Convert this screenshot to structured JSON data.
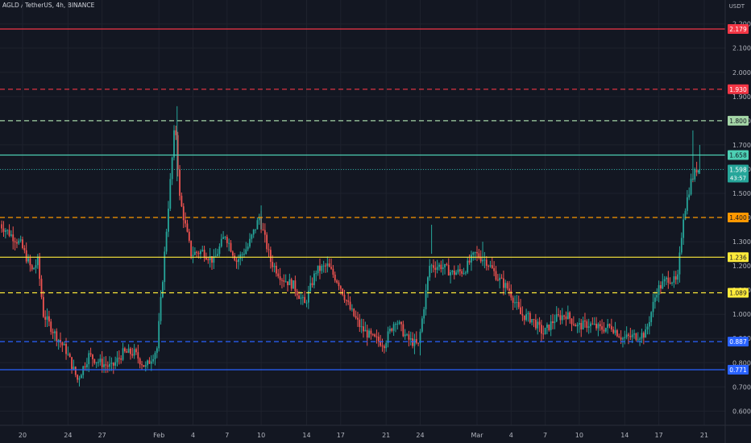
{
  "header": {
    "symbol": "AGLD / TetherUS, 4h, BINANCE",
    "currency": "USDT"
  },
  "colors": {
    "bg": "#131722",
    "up": "#26a69a",
    "down": "#ef5350",
    "grid": "#1e222d",
    "axis_text": "#b2b5be"
  },
  "chart_data": {
    "type": "candlestick",
    "title": "AGLD / TetherUS, 4h, BINANCE",
    "ylabel": "USDT",
    "ylim": [
      0.55,
      2.23
    ],
    "y_ticks": [
      "2.200",
      "2.100",
      "2.000",
      "1.900",
      "1.800",
      "1.700",
      "1.600",
      "1.500",
      "1.400",
      "1.300",
      "1.200",
      "1.100",
      "1.000",
      "0.900",
      "0.800",
      "0.700",
      "0.600"
    ],
    "x_ticks": [
      {
        "label": "20",
        "day": 0
      },
      {
        "label": "24",
        "day": 4
      },
      {
        "label": "27",
        "day": 7
      },
      {
        "label": "Feb",
        "day": 12
      },
      {
        "label": "4",
        "day": 15
      },
      {
        "label": "7",
        "day": 18
      },
      {
        "label": "10",
        "day": 21
      },
      {
        "label": "14",
        "day": 25
      },
      {
        "label": "17",
        "day": 28
      },
      {
        "label": "21",
        "day": 32
      },
      {
        "label": "24",
        "day": 35
      },
      {
        "label": "Mar",
        "day": 40
      },
      {
        "label": "4",
        "day": 43
      },
      {
        "label": "7",
        "day": 46
      },
      {
        "label": "10",
        "day": 49
      },
      {
        "label": "14",
        "day": 53
      },
      {
        "label": "17",
        "day": 56
      },
      {
        "label": "21",
        "day": 60
      }
    ],
    "levels": [
      {
        "value": 2.179,
        "label": "2.179",
        "color": "#f23645",
        "style": "solid"
      },
      {
        "value": 1.93,
        "label": "1.930",
        "color": "#f23645",
        "style": "dashed"
      },
      {
        "value": 1.8,
        "label": "1.800",
        "color": "#a5d6a7",
        "style": "dashed"
      },
      {
        "value": 1.658,
        "label": "1.658",
        "color": "#4dd0b4",
        "style": "solid"
      },
      {
        "value": 1.4,
        "label": "1.400",
        "color": "#ff9800",
        "style": "dashed"
      },
      {
        "value": 1.236,
        "label": "1.236",
        "color": "#ffeb3b",
        "style": "solid"
      },
      {
        "value": 1.089,
        "label": "1.089",
        "color": "#ffeb3b",
        "style": "dashed"
      },
      {
        "value": 0.887,
        "label": "0.887",
        "color": "#2962ff",
        "style": "dashed"
      },
      {
        "value": 0.771,
        "label": "0.771",
        "color": "#2962ff",
        "style": "solid"
      }
    ],
    "last_price": {
      "value": 1.598,
      "label": "1.598",
      "countdown": "43:57",
      "color": "#26a69a"
    },
    "keypoints": [
      [
        -2,
        1.38
      ],
      [
        0,
        1.29
      ],
      [
        1,
        1.18
      ],
      [
        1.5,
        1.22
      ],
      [
        2,
        1.0
      ],
      [
        3,
        0.92
      ],
      [
        4,
        0.85
      ],
      [
        5,
        0.73
      ],
      [
        6,
        0.83
      ],
      [
        7,
        0.8
      ],
      [
        8,
        0.78
      ],
      [
        9,
        0.84
      ],
      [
        10,
        0.84
      ],
      [
        11,
        0.78
      ],
      [
        12,
        0.86
      ],
      [
        12.5,
        1.15
      ],
      [
        13,
        1.45
      ],
      [
        13.6,
        1.8
      ],
      [
        14,
        1.48
      ],
      [
        15,
        1.25
      ],
      [
        16,
        1.26
      ],
      [
        17,
        1.22
      ],
      [
        18,
        1.33
      ],
      [
        19,
        1.22
      ],
      [
        20,
        1.28
      ],
      [
        21,
        1.4
      ],
      [
        22,
        1.22
      ],
      [
        23,
        1.15
      ],
      [
        24,
        1.12
      ],
      [
        25,
        1.04
      ],
      [
        26,
        1.18
      ],
      [
        27,
        1.2
      ],
      [
        28,
        1.13
      ],
      [
        29,
        1.02
      ],
      [
        30,
        0.94
      ],
      [
        31,
        0.9
      ],
      [
        32,
        0.88
      ],
      [
        33,
        0.98
      ],
      [
        34,
        0.9
      ],
      [
        35,
        0.87
      ],
      [
        36,
        1.2
      ],
      [
        37,
        1.2
      ],
      [
        38,
        1.17
      ],
      [
        39,
        1.18
      ],
      [
        40,
        1.25
      ],
      [
        41,
        1.22
      ],
      [
        42,
        1.15
      ],
      [
        43,
        1.1
      ],
      [
        44,
        1.0
      ],
      [
        45,
        0.98
      ],
      [
        46,
        0.92
      ],
      [
        47,
        0.98
      ],
      [
        48,
        1.0
      ],
      [
        49,
        0.95
      ],
      [
        50,
        0.96
      ],
      [
        51,
        0.94
      ],
      [
        52,
        0.95
      ],
      [
        53,
        0.9
      ],
      [
        54,
        0.91
      ],
      [
        55,
        0.92
      ],
      [
        56,
        1.1
      ],
      [
        57,
        1.15
      ],
      [
        57.8,
        1.13
      ],
      [
        58.3,
        1.4
      ],
      [
        59,
        1.55
      ],
      [
        59.5,
        1.6
      ]
    ]
  }
}
